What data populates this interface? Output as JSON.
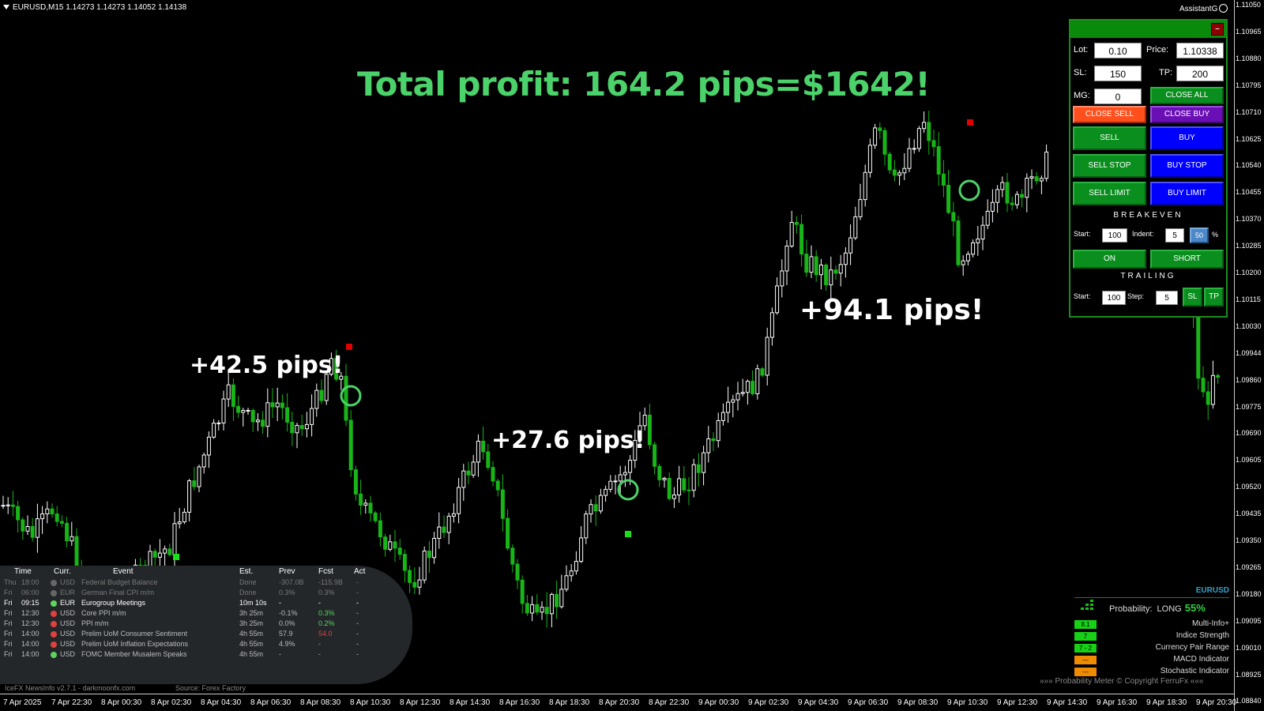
{
  "symbol_bar": {
    "text": "EURUSD,M15  1.14273 1.14273 1.14052 1.14138"
  },
  "assistant": {
    "label": "AssistantG"
  },
  "headline": "Total profit: 164.2 pips=$1642!",
  "trades": [
    {
      "label": "+42.5 pips!"
    },
    {
      "label": "+27.6 pips!"
    },
    {
      "label": "+94.1 pips!"
    }
  ],
  "price_axis": [
    "1.11050",
    "1.10965",
    "1.10880",
    "1.10795",
    "1.10710",
    "1.10625",
    "1.10540",
    "1.10455",
    "1.10370",
    "1.10285",
    "1.10200",
    "1.10115",
    "1.10030",
    "1.09944",
    "1.09860",
    "1.09775",
    "1.09690",
    "1.09605",
    "1.09520",
    "1.09435",
    "1.09350",
    "1.09265",
    "1.09180",
    "1.09095",
    "1.09010",
    "1.08925",
    "1.08840"
  ],
  "time_axis": [
    "7 Apr 2025",
    "7 Apr 22:30",
    "8 Apr 00:30",
    "8 Apr 02:30",
    "8 Apr 04:30",
    "8 Apr 06:30",
    "8 Apr 08:30",
    "8 Apr 10:30",
    "8 Apr 12:30",
    "8 Apr 14:30",
    "8 Apr 16:30",
    "8 Apr 18:30",
    "8 Apr 20:30",
    "8 Apr 22:30",
    "9 Apr 00:30",
    "9 Apr 02:30",
    "9 Apr 04:30",
    "9 Apr 06:30",
    "9 Apr 08:30",
    "9 Apr 10:30",
    "9 Apr 12:30",
    "9 Apr 14:30",
    "9 Apr 16:30",
    "9 Apr 18:30",
    "9 Apr 20:30"
  ],
  "panel": {
    "close_symbol": "–",
    "lot_label": "Lot:",
    "lot_value": "0.10",
    "price_label": "Price:",
    "price_value": "1.10338",
    "sl_label": "SL:",
    "sl_value": "150",
    "tp_label": "TP:",
    "tp_value": "200",
    "mg_label": "MG:",
    "mg_value": "0",
    "close_all": "CLOSE ALL",
    "close_sell": "CLOSE SELL",
    "close_buy": "CLOSE BUY",
    "sell": "SELL",
    "buy": "BUY",
    "sell_stop": "SELL STOP",
    "buy_stop": "BUY STOP",
    "sell_limit": "SELL LIMIT",
    "buy_limit": "BUY LIMIT",
    "breakeven_title": "BREAKEVEN",
    "be_start_label": "Start:",
    "be_start_value": "100",
    "be_indent_label": "Indent:",
    "be_indent_value": "5",
    "be_pct_value": "50",
    "be_pct_sign": "%",
    "on": "ON",
    "short": "SHORT",
    "trailing_title": "TRAILING",
    "tr_start_label": "Start:",
    "tr_start_value": "100",
    "tr_step_label": "Step:",
    "tr_step_value": "5",
    "sl_btn": "SL",
    "tp_btn": "TP"
  },
  "news": {
    "headers": {
      "time": "Time",
      "curr": "Curr.",
      "event": "Event",
      "est": "Est.",
      "prev": "Prev",
      "fcst": "Fcst",
      "act": "Act"
    },
    "rows": [
      {
        "day": "Thu",
        "time": "18:00",
        "curr": "USD",
        "event": "Federal Budget Balance",
        "est": "Done",
        "prev": "-307.0B",
        "fcst": "-115.9B",
        "act": "-",
        "state": "past",
        "dot": "#666",
        "fcst_color": "#777"
      },
      {
        "day": "Fri",
        "time": "06:00",
        "curr": "EUR",
        "event": "German Final CPI m/m",
        "est": "Done",
        "prev": "0.3%",
        "fcst": "0.3%",
        "act": "-",
        "state": "past",
        "dot": "#666",
        "fcst_color": "#777"
      },
      {
        "day": "Fri",
        "time": "09:15",
        "curr": "EUR",
        "event": "Eurogroup Meetings",
        "est": "10m 10s",
        "prev": "-",
        "fcst": "-",
        "act": "-",
        "state": "next",
        "dot": "#5fd35f",
        "fcst_color": "#fff"
      },
      {
        "day": "Fri",
        "time": "12:30",
        "curr": "USD",
        "event": "Core PPI m/m",
        "est": "3h 25m",
        "prev": "-0.1%",
        "fcst": "0.3%",
        "act": "-",
        "state": "future",
        "dot": "#e04040",
        "fcst_color": "#5fd35f"
      },
      {
        "day": "Fri",
        "time": "12:30",
        "curr": "USD",
        "event": "PPI m/m",
        "est": "3h 25m",
        "prev": "0.0%",
        "fcst": "0.2%",
        "act": "-",
        "state": "future",
        "dot": "#e04040",
        "fcst_color": "#5fd35f"
      },
      {
        "day": "Fri",
        "time": "14:00",
        "curr": "USD",
        "event": "Prelim UoM Consumer Sentiment",
        "est": "4h 55m",
        "prev": "57.9",
        "fcst": "54.0",
        "act": "-",
        "state": "future",
        "dot": "#e04040",
        "fcst_color": "#e04040"
      },
      {
        "day": "Fri",
        "time": "14:00",
        "curr": "USD",
        "event": "Prelim UoM Inflation Expectations",
        "est": "4h 55m",
        "prev": "4.9%",
        "fcst": "-",
        "act": "-",
        "state": "future",
        "dot": "#e04040",
        "fcst_color": "#aaa"
      },
      {
        "day": "Fri",
        "time": "14:00",
        "curr": "USD",
        "event": "FOMC Member Musalem Speaks",
        "est": "4h 55m",
        "prev": "-",
        "fcst": "-",
        "act": "-",
        "state": "future",
        "dot": "#5fd35f",
        "fcst_color": "#aaa"
      }
    ],
    "footer_left": "IceFX NewsInfo v2.7.1  -  darkmoonfx.com",
    "footer_right": "Source: Forex Factory"
  },
  "prob_meter": {
    "symbol": "EURUSD",
    "label": "Probability:",
    "direction": "LONG",
    "percent": "55%",
    "rows": [
      {
        "badge": "8.1",
        "badge_color": "#17d117",
        "name": "Multi-Info+"
      },
      {
        "badge": "7",
        "badge_color": "#17d117",
        "name": "Indice Strength"
      },
      {
        "badge": "7 - 2",
        "badge_color": "#17d117",
        "name": "Currency Pair Range"
      },
      {
        "badge": "---",
        "badge_color": "#f08c00",
        "name": "MACD Indicator"
      },
      {
        "badge": "---",
        "badge_color": "#f08c00",
        "name": "Stochastic Indicator"
      }
    ],
    "footer": "»»» Probability Meter © Copyright FerruFx «««"
  },
  "colors": {
    "bull": "#ffffff",
    "bear": "#18b418",
    "profit_text": "#4cd26a",
    "circle": "#4cd26a",
    "sell_marker": "#e00000",
    "buy_marker": "#18e018"
  }
}
